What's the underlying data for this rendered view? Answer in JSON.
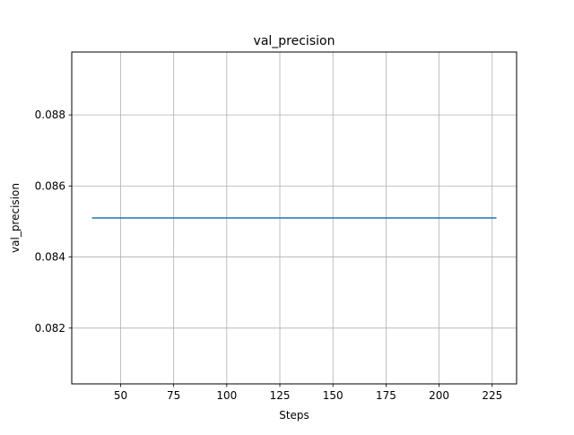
{
  "chart_data": {
    "type": "line",
    "title": "val_precision",
    "xlabel": "Steps",
    "ylabel": "val_precision",
    "xlim": [
      27,
      236.5
    ],
    "ylim": [
      0.08043,
      0.08977
    ],
    "xticks": [
      50,
      75,
      100,
      125,
      150,
      175,
      200,
      225
    ],
    "yticks": [
      0.082,
      0.084,
      0.086,
      0.088
    ],
    "ytick_labels": [
      "0.082",
      "0.084",
      "0.086",
      "0.088"
    ],
    "grid": true,
    "series": [
      {
        "color": "#1f77b4",
        "x": [
          36.5,
          227
        ],
        "y": [
          0.0851,
          0.0851
        ]
      }
    ]
  }
}
